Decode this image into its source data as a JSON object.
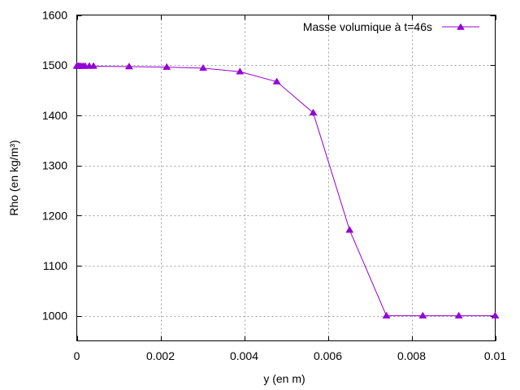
{
  "chart_data": {
    "type": "line",
    "xlabel": "y (en m)",
    "ylabel": "Rho (en kg/m³)",
    "xlim": [
      0,
      0.01
    ],
    "ylim": [
      950,
      1600
    ],
    "grid": true,
    "legend_position": "top-right",
    "x_ticks": [
      0,
      0.002,
      0.004,
      0.006,
      0.008,
      0.01
    ],
    "x_tick_labels": [
      "0",
      "0.002",
      "0.004",
      "0.006",
      "0.008",
      "0.01"
    ],
    "y_ticks": [
      1000,
      1100,
      1200,
      1300,
      1400,
      1500,
      1600
    ],
    "y_tick_labels": [
      "1000",
      "1100",
      "1200",
      "1300",
      "1400",
      "1500",
      "1600"
    ],
    "colors": {
      "series": "#9400d3",
      "grid": "#a0a0a0",
      "axes": "#000000"
    },
    "series": [
      {
        "name": "Masse volumique à t=46s",
        "marker": "triangle-up",
        "x": [
          0,
          3e-05,
          6e-05,
          0.0001,
          0.00015,
          0.0002,
          0.0003,
          0.0004,
          0.00125,
          0.00215,
          0.00302,
          0.0039,
          0.00478,
          0.00565,
          0.00652,
          0.0074,
          0.00827,
          0.00913,
          0.01
        ],
        "y": [
          1498,
          1498,
          1498,
          1498,
          1498,
          1498,
          1498,
          1498,
          1497,
          1496,
          1494,
          1487,
          1467,
          1405,
          1171,
          1000,
          1000,
          1000,
          1000
        ]
      }
    ]
  }
}
